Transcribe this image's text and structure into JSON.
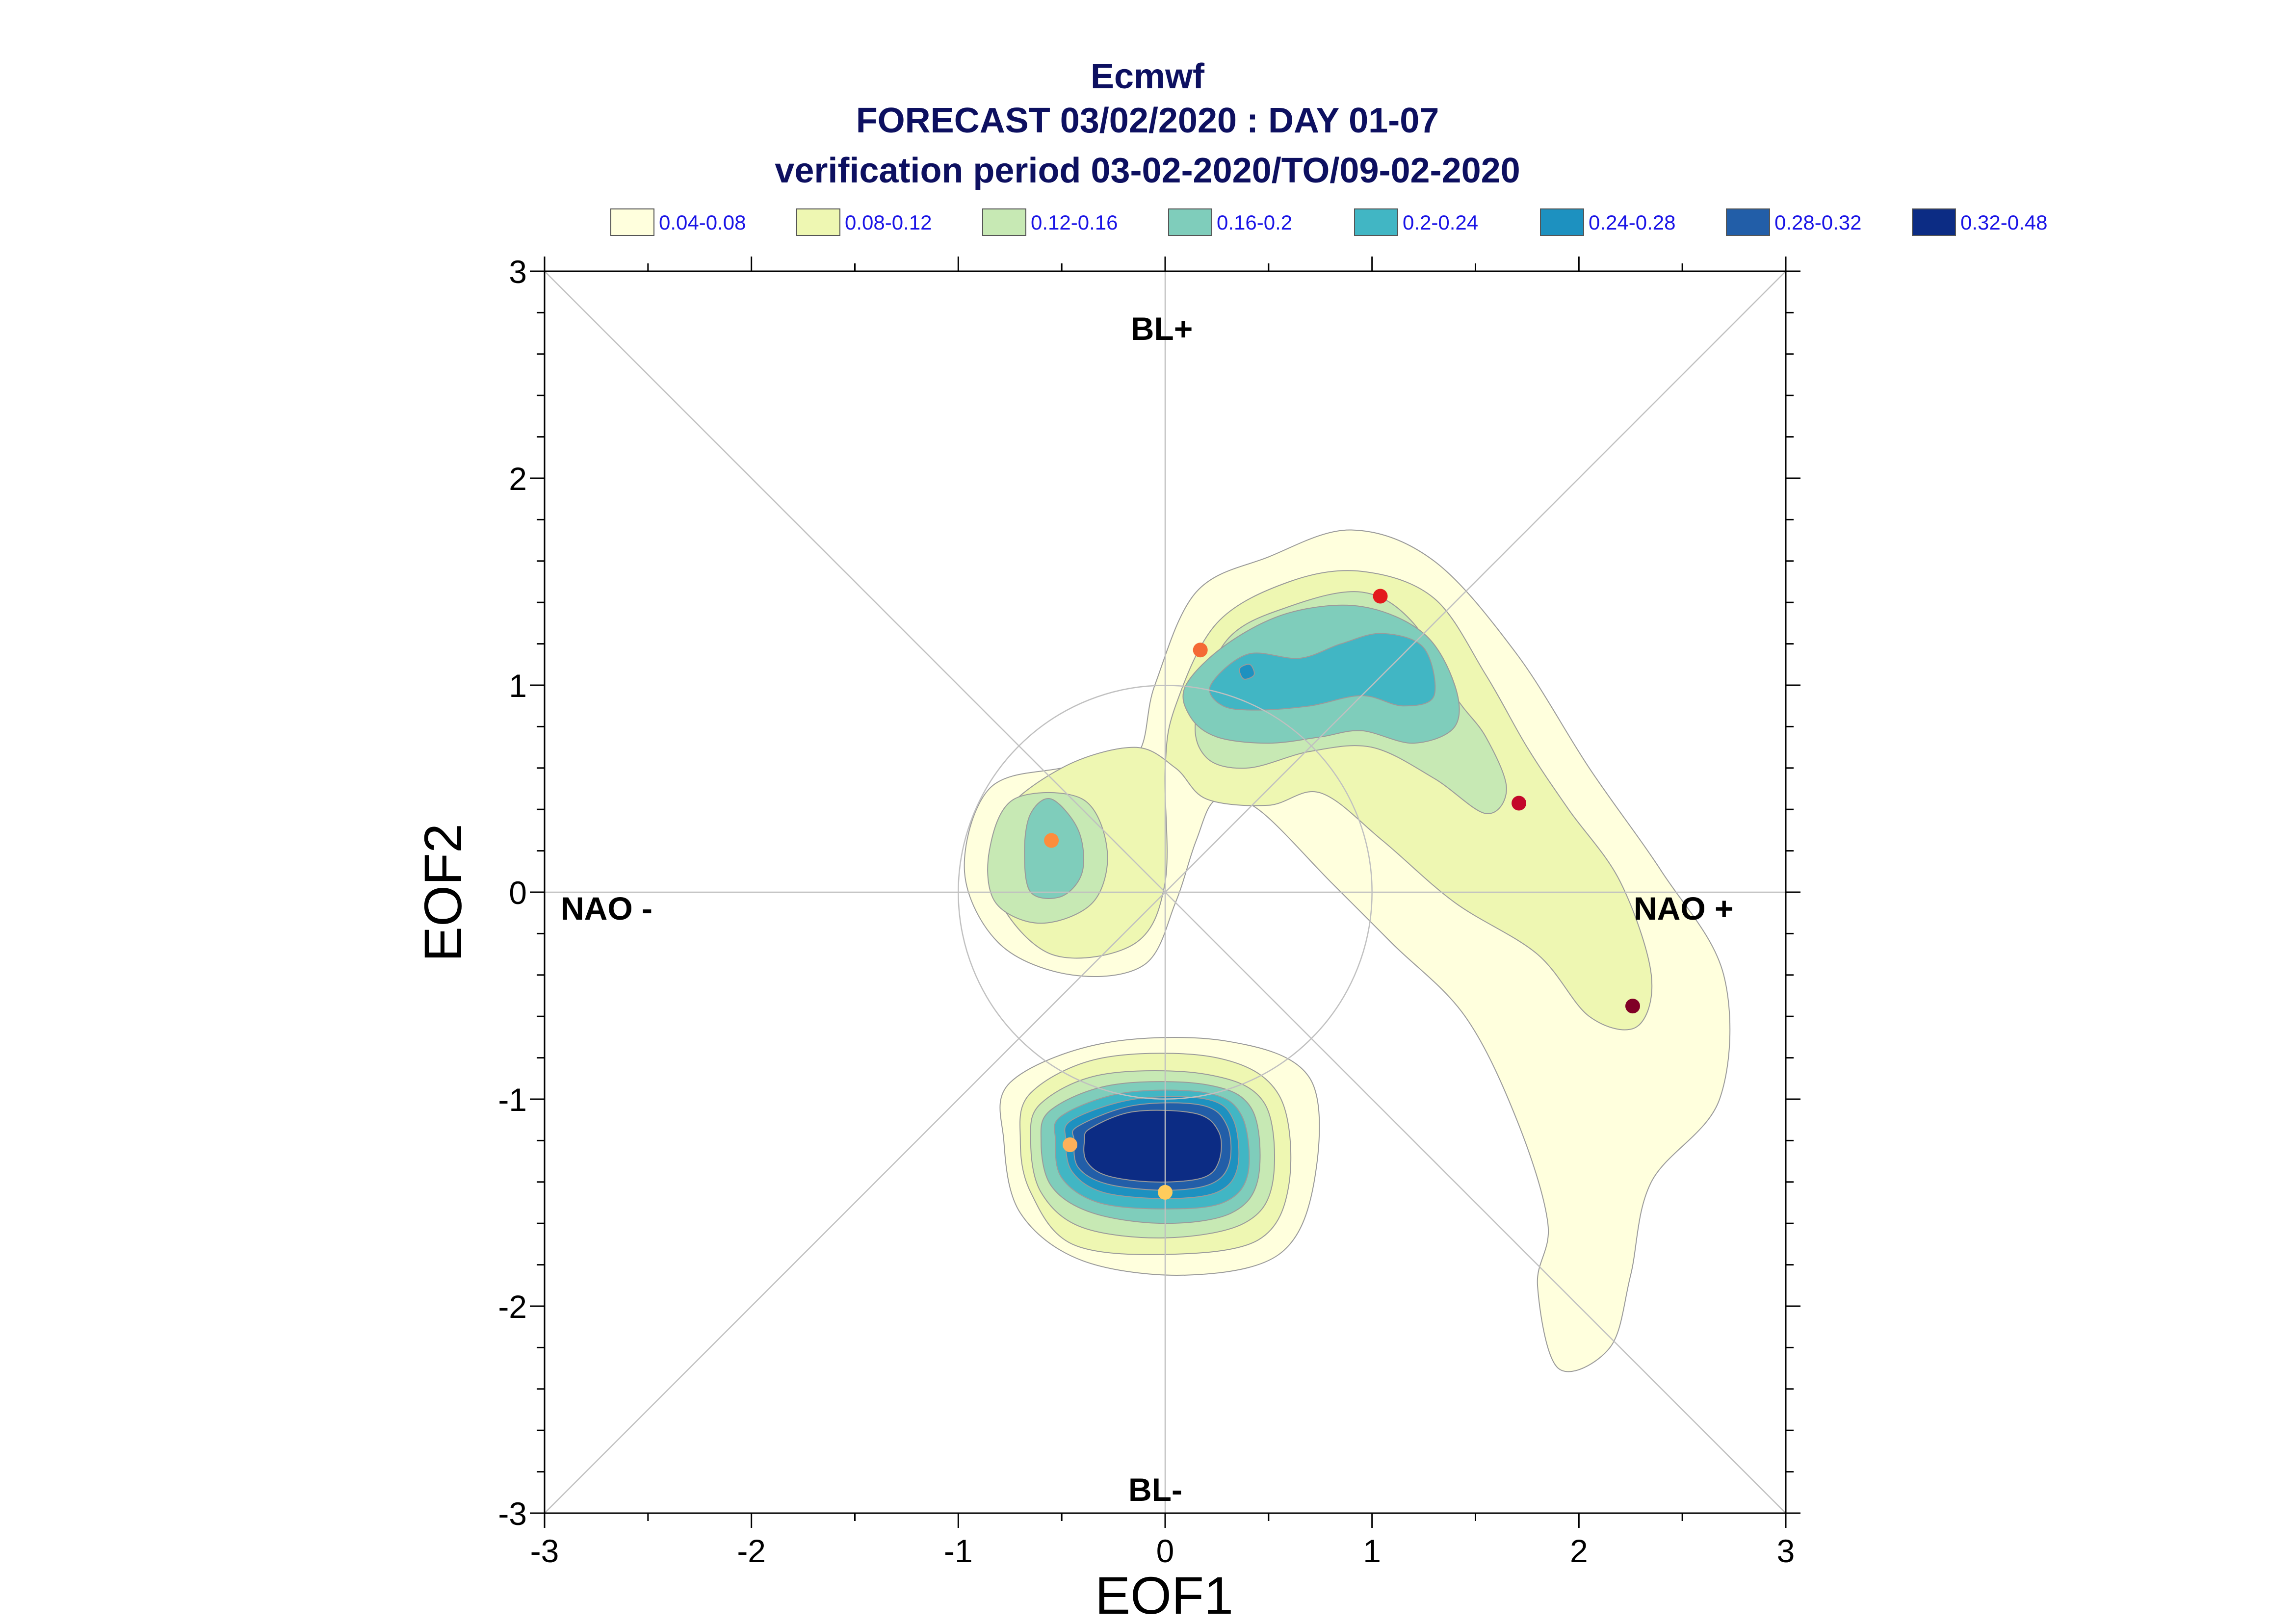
{
  "chart_data": {
    "type": "scatter",
    "title": [
      "Ecmwf",
      "FORECAST 03/02/2020 : DAY 01-07",
      "verification period 03-02-2020/TO/09-02-2020"
    ],
    "xlabel": "EOF1",
    "ylabel": "EOF2",
    "xlim": [
      -3,
      3
    ],
    "ylim": [
      -3,
      3
    ],
    "x_ticks": [
      "-3",
      "-2",
      "-1",
      "0",
      "1",
      "2",
      "3"
    ],
    "y_ticks": [
      "-3",
      "-2",
      "-1",
      "0",
      "1",
      "2",
      "3"
    ],
    "grid": false,
    "legend_placement": "top",
    "legend": [
      {
        "label": "0.04-0.08",
        "color": "#ffffdd"
      },
      {
        "label": "0.08-0.12",
        "color": "#eef7b2"
      },
      {
        "label": "0.12-0.16",
        "color": "#c7e9b4"
      },
      {
        "label": "0.16-0.2",
        "color": "#7fcdbb"
      },
      {
        "label": "0.2-0.24",
        "color": "#41b6c4"
      },
      {
        "label": "0.24-0.28",
        "color": "#1d91c0"
      },
      {
        "label": "0.28-0.32",
        "color": "#225ea8"
      },
      {
        "label": "0.32-0.48",
        "color": "#0c2c84"
      }
    ],
    "region_labels": {
      "top": "BL+",
      "bottom": "BL-",
      "left": "NAO -",
      "right": "NAO +"
    },
    "reference_circle_radius": 1.0,
    "points": [
      {
        "x": 0.0,
        "y": -1.45,
        "color": "#fecc5c"
      },
      {
        "x": -0.46,
        "y": -1.22,
        "color": "#fdb15a"
      },
      {
        "x": -0.55,
        "y": 0.25,
        "color": "#fd8d3c"
      },
      {
        "x": 0.17,
        "y": 1.17,
        "color": "#f46a35"
      },
      {
        "x": 1.04,
        "y": 1.43,
        "color": "#e31a1c"
      },
      {
        "x": 1.71,
        "y": 0.43,
        "color": "#c3082a"
      },
      {
        "x": 2.26,
        "y": -0.55,
        "color": "#800026"
      }
    ],
    "density_contours": [
      {
        "level": "0.04-0.08",
        "color": "#ffffdd",
        "path": [
          [
            -0.05,
            1.0
          ],
          [
            0.15,
            1.45
          ],
          [
            0.5,
            1.62
          ],
          [
            0.9,
            1.75
          ],
          [
            1.3,
            1.6
          ],
          [
            1.7,
            1.15
          ],
          [
            2.05,
            0.6
          ],
          [
            2.4,
            0.1
          ],
          [
            2.7,
            -0.4
          ],
          [
            2.68,
            -1.0
          ],
          [
            2.35,
            -1.4
          ],
          [
            2.25,
            -1.85
          ],
          [
            2.15,
            -2.2
          ],
          [
            1.9,
            -2.3
          ],
          [
            1.8,
            -1.9
          ],
          [
            1.85,
            -1.6
          ],
          [
            1.7,
            -1.1
          ],
          [
            1.45,
            -0.6
          ],
          [
            1.1,
            -0.25
          ],
          [
            0.8,
            0.05
          ],
          [
            0.45,
            0.4
          ],
          [
            0.25,
            0.45
          ],
          [
            0.15,
            0.25
          ],
          [
            0.05,
            -0.05
          ],
          [
            -0.1,
            -0.35
          ],
          [
            -0.45,
            -0.4
          ],
          [
            -0.8,
            -0.25
          ],
          [
            -0.97,
            0.1
          ],
          [
            -0.85,
            0.5
          ],
          [
            -0.5,
            0.6
          ],
          [
            -0.15,
            0.65
          ]
        ]
      },
      {
        "level": "0.04-0.08",
        "color": "#ffffdd",
        "path": [
          [
            -0.75,
            -0.92
          ],
          [
            -0.3,
            -0.73
          ],
          [
            0.3,
            -0.72
          ],
          [
            0.7,
            -0.9
          ],
          [
            0.72,
            -1.4
          ],
          [
            0.55,
            -1.75
          ],
          [
            0.1,
            -1.85
          ],
          [
            -0.4,
            -1.78
          ],
          [
            -0.7,
            -1.55
          ],
          [
            -0.78,
            -1.2
          ]
        ]
      },
      {
        "level": "0.08-0.12",
        "color": "#eef7b2",
        "path": [
          [
            0.05,
            0.9
          ],
          [
            0.25,
            1.3
          ],
          [
            0.6,
            1.5
          ],
          [
            0.95,
            1.55
          ],
          [
            1.3,
            1.42
          ],
          [
            1.55,
            1.05
          ],
          [
            1.75,
            0.7
          ],
          [
            1.95,
            0.4
          ],
          [
            2.2,
            0.05
          ],
          [
            2.35,
            -0.4
          ],
          [
            2.28,
            -0.65
          ],
          [
            2.05,
            -0.6
          ],
          [
            1.8,
            -0.3
          ],
          [
            1.4,
            -0.05
          ],
          [
            1.05,
            0.25
          ],
          [
            0.75,
            0.48
          ],
          [
            0.5,
            0.42
          ],
          [
            0.2,
            0.45
          ],
          [
            0.05,
            0.6
          ],
          [
            -0.15,
            0.7
          ],
          [
            -0.5,
            0.6
          ],
          [
            -0.8,
            0.35
          ],
          [
            -0.82,
            0.0
          ],
          [
            -0.55,
            -0.3
          ],
          [
            -0.15,
            -0.25
          ],
          [
            0.0,
            0.05
          ],
          [
            0.0,
            0.6
          ]
        ]
      },
      {
        "level": "0.08-0.12",
        "color": "#eef7b2",
        "path": [
          [
            -0.65,
            -0.97
          ],
          [
            -0.3,
            -0.8
          ],
          [
            0.25,
            -0.8
          ],
          [
            0.55,
            -0.98
          ],
          [
            0.6,
            -1.4
          ],
          [
            0.45,
            -1.68
          ],
          [
            0.0,
            -1.75
          ],
          [
            -0.45,
            -1.7
          ],
          [
            -0.65,
            -1.45
          ],
          [
            -0.7,
            -1.2
          ]
        ]
      },
      {
        "level": "0.12-0.16",
        "color": "#c7e9b4",
        "path": [
          [
            0.15,
            0.85
          ],
          [
            0.3,
            1.22
          ],
          [
            0.6,
            1.38
          ],
          [
            0.95,
            1.45
          ],
          [
            1.2,
            1.3
          ],
          [
            1.4,
            0.95
          ],
          [
            1.55,
            0.75
          ],
          [
            1.65,
            0.5
          ],
          [
            1.55,
            0.38
          ],
          [
            1.3,
            0.55
          ],
          [
            1.0,
            0.7
          ],
          [
            0.7,
            0.68
          ],
          [
            0.4,
            0.6
          ],
          [
            0.2,
            0.65
          ]
        ]
      },
      {
        "level": "0.12-0.16",
        "color": "#c7e9b4",
        "path": [
          [
            -0.73,
            0.45
          ],
          [
            -0.4,
            0.45
          ],
          [
            -0.28,
            0.2
          ],
          [
            -0.35,
            -0.05
          ],
          [
            -0.6,
            -0.15
          ],
          [
            -0.82,
            -0.05
          ],
          [
            -0.85,
            0.2
          ]
        ]
      },
      {
        "level": "0.12-0.16",
        "color": "#c7e9b4",
        "path": [
          [
            -0.6,
            -1.02
          ],
          [
            -0.3,
            -0.88
          ],
          [
            0.2,
            -0.88
          ],
          [
            0.48,
            -1.02
          ],
          [
            0.52,
            -1.4
          ],
          [
            0.38,
            -1.6
          ],
          [
            0.0,
            -1.67
          ],
          [
            -0.4,
            -1.62
          ],
          [
            -0.6,
            -1.45
          ],
          [
            -0.65,
            -1.2
          ]
        ]
      },
      {
        "level": "0.16-0.2",
        "color": "#7fcdbb",
        "path": [
          [
            0.1,
            1.0
          ],
          [
            0.3,
            1.2
          ],
          [
            0.6,
            1.35
          ],
          [
            0.95,
            1.38
          ],
          [
            1.25,
            1.25
          ],
          [
            1.4,
            1.0
          ],
          [
            1.4,
            0.8
          ],
          [
            1.2,
            0.72
          ],
          [
            0.95,
            0.78
          ],
          [
            0.75,
            0.75
          ],
          [
            0.5,
            0.72
          ],
          [
            0.25,
            0.75
          ],
          [
            0.12,
            0.85
          ]
        ]
      },
      {
        "level": "0.16-0.2",
        "color": "#7fcdbb",
        "path": [
          [
            -0.55,
            0.45
          ],
          [
            -0.42,
            0.3
          ],
          [
            -0.4,
            0.1
          ],
          [
            -0.5,
            -0.02
          ],
          [
            -0.65,
            0.0
          ],
          [
            -0.68,
            0.2
          ],
          [
            -0.65,
            0.38
          ]
        ]
      },
      {
        "level": "0.16-0.2",
        "color": "#7fcdbb",
        "path": [
          [
            -0.55,
            -1.05
          ],
          [
            -0.25,
            -0.93
          ],
          [
            0.2,
            -0.93
          ],
          [
            0.42,
            -1.05
          ],
          [
            0.45,
            -1.38
          ],
          [
            0.32,
            -1.55
          ],
          [
            0.0,
            -1.6
          ],
          [
            -0.35,
            -1.55
          ],
          [
            -0.55,
            -1.42
          ],
          [
            -0.6,
            -1.2
          ]
        ]
      },
      {
        "level": "0.2-0.24",
        "color": "#41b6c4",
        "path": [
          [
            0.22,
            1.0
          ],
          [
            0.4,
            1.15
          ],
          [
            0.65,
            1.13
          ],
          [
            0.85,
            1.2
          ],
          [
            1.05,
            1.25
          ],
          [
            1.25,
            1.18
          ],
          [
            1.3,
            0.95
          ],
          [
            1.15,
            0.9
          ],
          [
            0.95,
            0.95
          ],
          [
            0.7,
            0.9
          ],
          [
            0.45,
            0.88
          ],
          [
            0.28,
            0.9
          ]
        ]
      },
      {
        "level": "0.2-0.24",
        "color": "#41b6c4",
        "path": [
          [
            -0.5,
            -1.08
          ],
          [
            -0.2,
            -0.97
          ],
          [
            0.2,
            -0.97
          ],
          [
            0.37,
            -1.08
          ],
          [
            0.4,
            -1.36
          ],
          [
            0.28,
            -1.5
          ],
          [
            0.0,
            -1.53
          ],
          [
            -0.32,
            -1.5
          ],
          [
            -0.5,
            -1.38
          ],
          [
            -0.53,
            -1.2
          ]
        ]
      },
      {
        "level": "0.24-0.28",
        "color": "#1d91c0",
        "path": [
          [
            -0.45,
            -1.1
          ],
          [
            -0.15,
            -1.0
          ],
          [
            0.2,
            -1.0
          ],
          [
            0.33,
            -1.1
          ],
          [
            0.35,
            -1.33
          ],
          [
            0.25,
            -1.45
          ],
          [
            0.0,
            -1.48
          ],
          [
            -0.3,
            -1.45
          ],
          [
            -0.45,
            -1.35
          ],
          [
            -0.48,
            -1.2
          ]
        ]
      },
      {
        "level": "0.24-0.28",
        "color": "#1d91c0",
        "path": [
          [
            0.36,
            1.08
          ],
          [
            0.41,
            1.1
          ],
          [
            0.43,
            1.05
          ],
          [
            0.38,
            1.03
          ]
        ]
      },
      {
        "level": "0.28-0.32",
        "color": "#225ea8",
        "path": [
          [
            -0.42,
            -1.13
          ],
          [
            -0.15,
            -1.03
          ],
          [
            0.18,
            -1.03
          ],
          [
            0.3,
            -1.13
          ],
          [
            0.31,
            -1.31
          ],
          [
            0.22,
            -1.41
          ],
          [
            0.0,
            -1.44
          ],
          [
            -0.28,
            -1.41
          ],
          [
            -0.42,
            -1.33
          ],
          [
            -0.44,
            -1.2
          ]
        ]
      },
      {
        "level": "0.32-0.48",
        "color": "#0c2c84",
        "path": [
          [
            -0.36,
            -1.14
          ],
          [
            -0.15,
            -1.06
          ],
          [
            0.15,
            -1.07
          ],
          [
            0.26,
            -1.16
          ],
          [
            0.26,
            -1.3
          ],
          [
            0.18,
            -1.38
          ],
          [
            -0.05,
            -1.4
          ],
          [
            -0.28,
            -1.37
          ],
          [
            -0.38,
            -1.3
          ],
          [
            -0.39,
            -1.2
          ]
        ]
      }
    ]
  }
}
